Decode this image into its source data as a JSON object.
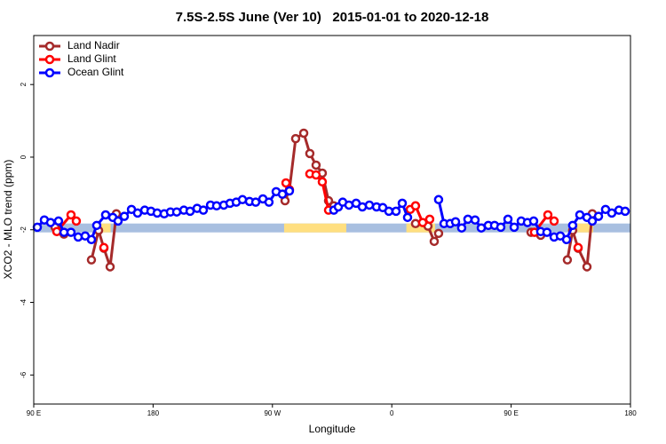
{
  "chart_data": {
    "type": "line",
    "title": "7.5S-2.5S June (Ver 10)   2015-01-01 to 2020-12-18",
    "x_label": "Longitude",
    "y_label": "XCO2 - MLO trend (ppm)",
    "xlim": [
      90,
      540
    ],
    "ylim": [
      -6.8,
      3.35
    ],
    "xticks": [
      {
        "value": 90,
        "label": "90 E"
      },
      180,
      {
        "value": 270,
        "label": "90 W"
      },
      {
        "value": 360,
        "label": "0"
      },
      {
        "value": 450,
        "label": "90 E"
      },
      {
        "value": 540,
        "label": "180"
      }
    ],
    "yticks": [
      2,
      0,
      -2,
      -4,
      -6
    ],
    "legend": "top-left",
    "band_y": -1.95,
    "ocean_band_color": "#a8bfe0",
    "land_band_color": "#ffdf80",
    "land_ranges": [
      [
        139.6,
        148
      ],
      [
        278.8,
        325.7
      ],
      [
        371,
        392.7
      ],
      [
        500,
        511.9
      ]
    ],
    "series": [
      {
        "name": "Land Nadir",
        "color": "#a52a2a",
        "x": [
          106.1,
          112.8,
          null,
          133.5,
          138.9,
          142.9,
          147.6,
          152.3,
          null,
          279.5,
          282.8,
          287.5,
          293.6,
          298.2,
          302.9,
          307.6,
          312.3,
          316.3,
          null,
          377.9,
          387.3,
          392,
          395.3,
          null,
          465,
          472.3,
          null,
          492.4,
          496.4,
          500.5,
          507.2,
          511.2
        ],
        "values": [
          -1.93,
          -2.12,
          null,
          -2.83,
          -2.02,
          -2.51,
          -3.02,
          -1.56,
          null,
          -1.2,
          -0.9,
          0.51,
          0.66,
          0.1,
          -0.22,
          -0.44,
          -1.2,
          -1.34,
          null,
          -1.83,
          -1.9,
          -2.32,
          -2.1,
          null,
          -2.07,
          -2.15,
          null,
          -2.83,
          -2.02,
          -2.51,
          -3.02,
          -1.56
        ]
      },
      {
        "name": "Land Glint",
        "color": "#ff0000",
        "x": [
          107.4,
          118.1,
          122.1,
          null,
          142.9,
          null,
          280.2,
          282.8,
          null,
          298.2,
          302.9,
          307.6,
          312.3,
          null,
          373.9,
          377.9,
          383.3,
          388.6,
          null,
          467.6,
          477.7,
          482.4,
          null,
          500.5
        ],
        "values": [
          -2.05,
          -1.59,
          -1.76,
          null,
          -2.49,
          null,
          -0.71,
          -0.9,
          null,
          -0.46,
          -0.49,
          -0.68,
          -1.46,
          null,
          -1.44,
          -1.34,
          -1.8,
          -1.71,
          null,
          -2.07,
          -1.59,
          -1.76,
          null,
          -2.49
        ]
      },
      {
        "name": "Ocean Glint",
        "color": "#0000ff",
        "x": [
          92.7,
          98,
          102.7,
          108.7,
          112.8,
          118.1,
          123.5,
          128.8,
          133.5,
          137.5,
          144.2,
          149.6,
          153.6,
          158.3,
          163.7,
          168.3,
          173.7,
          178.4,
          183.1,
          188.4,
          193.1,
          197.8,
          203.2,
          207.9,
          213.2,
          217.9,
          223.3,
          227.9,
          233.3,
          238,
          242.7,
          247.4,
          252.7,
          257.4,
          262.8,
          267.4,
          272.8,
          277.5,
          282.8,
          null,
          316.3,
          319.7,
          323,
          327.7,
          333.1,
          337.8,
          343.1,
          348.5,
          353.2,
          357.8,
          363.2,
          367.9,
          371.9,
          null,
          395.3,
          399.4,
          404,
          408.1,
          412.7,
          417.4,
          422.8,
          427.5,
          432.8,
          437.5,
          442.2,
          447.6,
          452.3,
          457.6,
          462.3,
          467,
          472.3,
          477,
          482.4,
          487.1,
          491.8,
          496.4,
          501.8,
          507.2,
          511.2,
          515.9,
          521.2,
          525.9,
          531.3,
          536
        ],
        "values": [
          -1.93,
          -1.73,
          -1.8,
          -1.76,
          -2.07,
          -2.07,
          -2.2,
          -2.17,
          -2.27,
          -1.88,
          -1.59,
          -1.66,
          -1.76,
          -1.63,
          -1.44,
          -1.54,
          -1.46,
          -1.49,
          -1.54,
          -1.56,
          -1.51,
          -1.51,
          -1.46,
          -1.49,
          -1.41,
          -1.46,
          -1.32,
          -1.34,
          -1.32,
          -1.27,
          -1.24,
          -1.17,
          -1.22,
          -1.24,
          -1.15,
          -1.24,
          -0.95,
          -1.02,
          -0.93,
          null,
          -1.46,
          -1.37,
          -1.24,
          -1.32,
          -1.27,
          -1.37,
          -1.32,
          -1.37,
          -1.39,
          -1.49,
          -1.49,
          -1.27,
          -1.66,
          null,
          -1.17,
          -1.83,
          -1.83,
          -1.78,
          -1.95,
          -1.71,
          -1.73,
          -1.95,
          -1.88,
          -1.88,
          -1.93,
          -1.71,
          -1.93,
          -1.76,
          -1.8,
          -1.76,
          -2.05,
          -2.07,
          -2.2,
          -2.17,
          -2.27,
          -1.88,
          -1.59,
          -1.66,
          -1.76,
          -1.63,
          -1.44,
          -1.54,
          -1.46,
          -1.49
        ]
      }
    ]
  }
}
